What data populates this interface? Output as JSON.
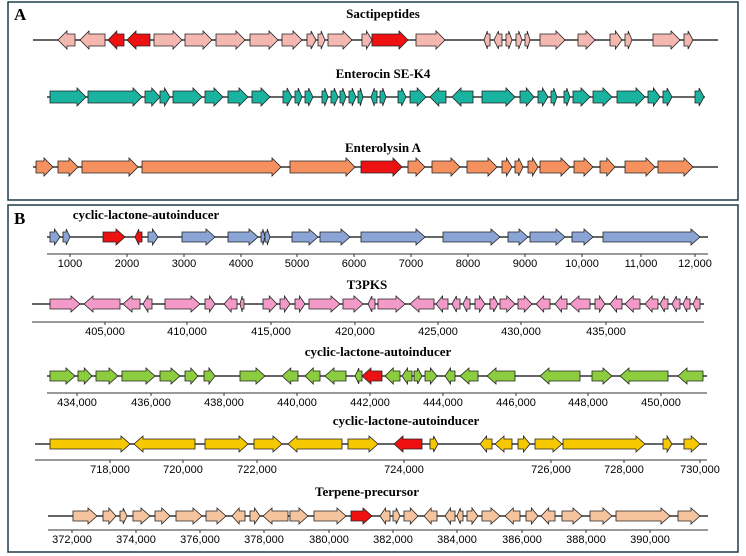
{
  "panels": [
    {
      "label": "A",
      "tracks": [
        {
          "title": "Sactipeptides"
        },
        {
          "title": "Enterocin SE-K4"
        },
        {
          "title": "Enterolysin A"
        }
      ]
    },
    {
      "label": "B",
      "tracks": [
        {
          "title": "cyclic-lactone-autoinducer",
          "ticks": [
            "1000",
            "2000",
            "3000",
            "4000",
            "5000",
            "6000",
            "7000",
            "8000",
            "9000",
            "10,000",
            "11,000",
            "12,000"
          ]
        },
        {
          "title": "T3PKS",
          "ticks": [
            "405,000",
            "410,000",
            "415,000",
            "420,000",
            "425,000",
            "430,000",
            "435,000"
          ]
        },
        {
          "title": "cyclic-lactone-autoinducer",
          "ticks": [
            "434,000",
            "436,000",
            "438,000",
            "440,000",
            "442,000",
            "444,000",
            "446,000",
            "448,000",
            "450,000"
          ]
        },
        {
          "title": "cyclic-lactone-autoinducer",
          "ticks": [
            "718,000",
            "720,000",
            "722,000",
            "724,000",
            "726,000",
            "728,000",
            "730,000"
          ]
        },
        {
          "title": "Terpene-precursor",
          "ticks": [
            "372,000",
            "374,000",
            "376,000",
            "378,000",
            "380,000",
            "382,000",
            "384,000",
            "386,000",
            "388,000",
            "390,000"
          ]
        }
      ]
    }
  ]
}
